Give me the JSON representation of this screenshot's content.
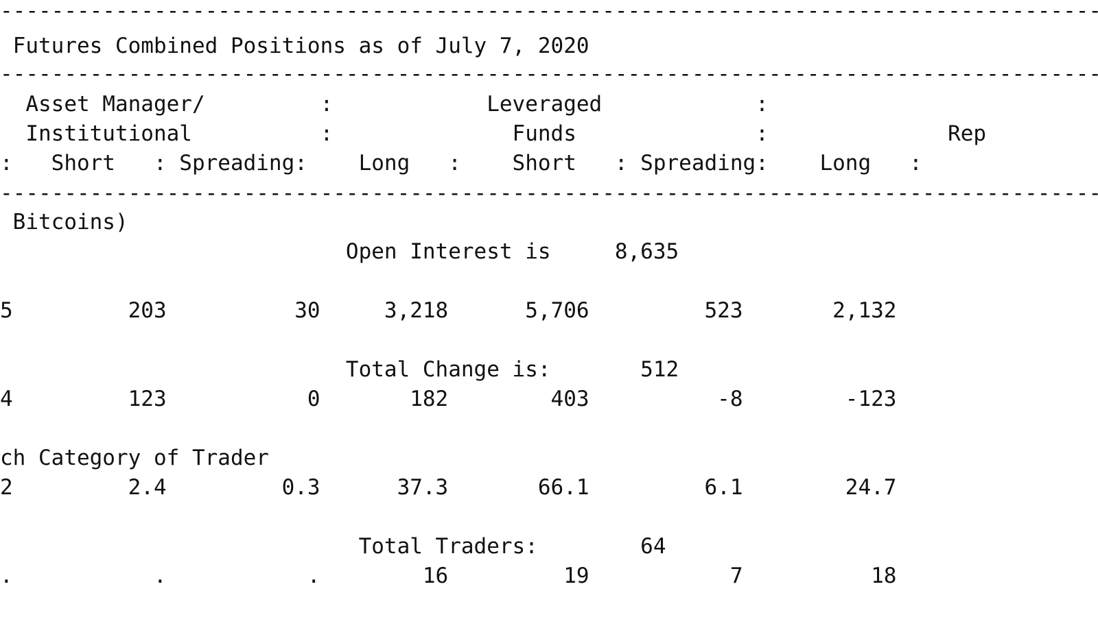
{
  "report": {
    "dash_rule": "--------------------------------------------------------------------------------------------------------------------------",
    "title": " Futures Combined Positions as of July 7, 2020",
    "header_rows": [
      "  Asset Manager/         :            Leveraged            :                ",
      "  Institutional          :              Funds              :              Rep",
      ":   Short   : Spreading:    Long   :    Short   : Spreading:    Long   :"
    ],
    "unit_line": " Bitcoins)",
    "open_interest_line": "                           Open Interest is     8,635",
    "positions_row": "5         203          30     3,218      5,706         523       2,132",
    "total_change_line": "                           Total Change is:       512",
    "changes_row": "4         123           0       182        403          -8        -123",
    "percent_caption": "ch Category of Trader",
    "percent_row": "2         2.4         0.3      37.3       66.1         6.1        24.7",
    "traders_line": "                            Total Traders:        64",
    "traders_row": ".           .           .        16         19           7          18"
  }
}
